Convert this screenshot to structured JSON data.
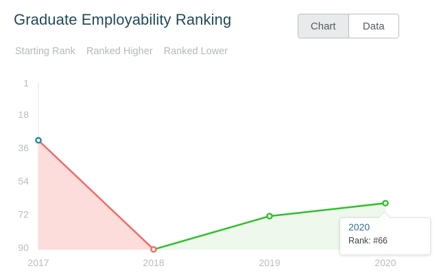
{
  "header": {
    "title": "Graduate Employability Ranking"
  },
  "view_toggle": {
    "chart_label": "Chart",
    "data_label": "Data",
    "active": "chart"
  },
  "legend": [
    {
      "label": "Starting Rank",
      "color": "#1b8aa8"
    },
    {
      "label": "Ranked Higher",
      "color": "#2fbf2a"
    },
    {
      "label": "Ranked Lower",
      "color": "#f06a64"
    }
  ],
  "tooltip": {
    "year": "2020",
    "rank_text": "Rank: #66"
  },
  "chart_data": {
    "type": "line",
    "title": "",
    "xlabel": "",
    "ylabel": "",
    "x": [
      "2017",
      "2018",
      "2019",
      "2020"
    ],
    "y_ticks": [
      1,
      18,
      36,
      54,
      72,
      90
    ],
    "ylim": [
      1,
      90
    ],
    "y_inverted": true,
    "grid": false,
    "series": [
      {
        "values": [
          32,
          91,
          73,
          66
        ]
      }
    ],
    "colors": {
      "start_point": "#1b8aa8",
      "lower": "#f06a64",
      "lower_fill": "#fddcdc",
      "higher": "#2fbf2a",
      "higher_fill": "#eef8ec"
    }
  }
}
